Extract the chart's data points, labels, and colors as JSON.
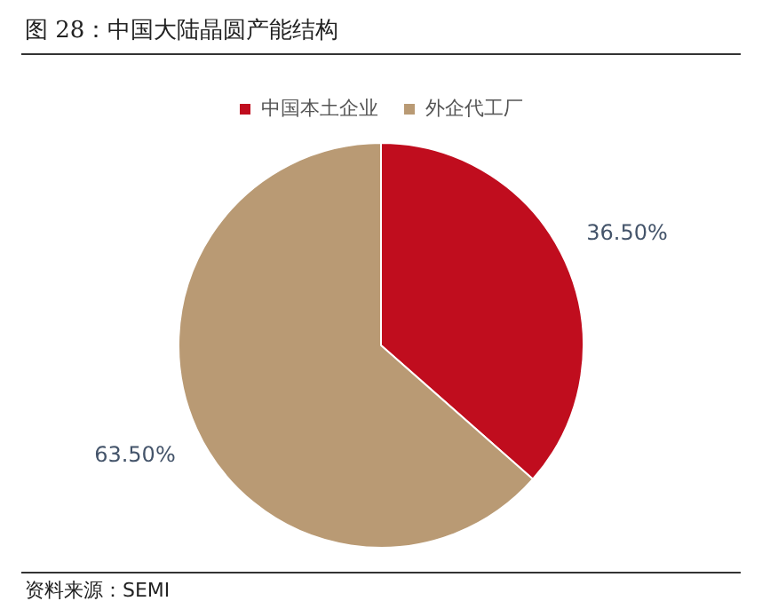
{
  "chart_data": {
    "type": "pie",
    "title": "图 28：中国大陆晶圆产能结构",
    "categories": [
      "中国本土企业",
      "外企代工厂"
    ],
    "values": [
      36.5,
      63.5
    ],
    "colors": [
      "#c00d1e",
      "#b99a74"
    ],
    "value_labels": [
      "36.50%",
      "63.50%"
    ],
    "legend": "top",
    "annotations": [
      "资料来源：SEMI"
    ]
  }
}
